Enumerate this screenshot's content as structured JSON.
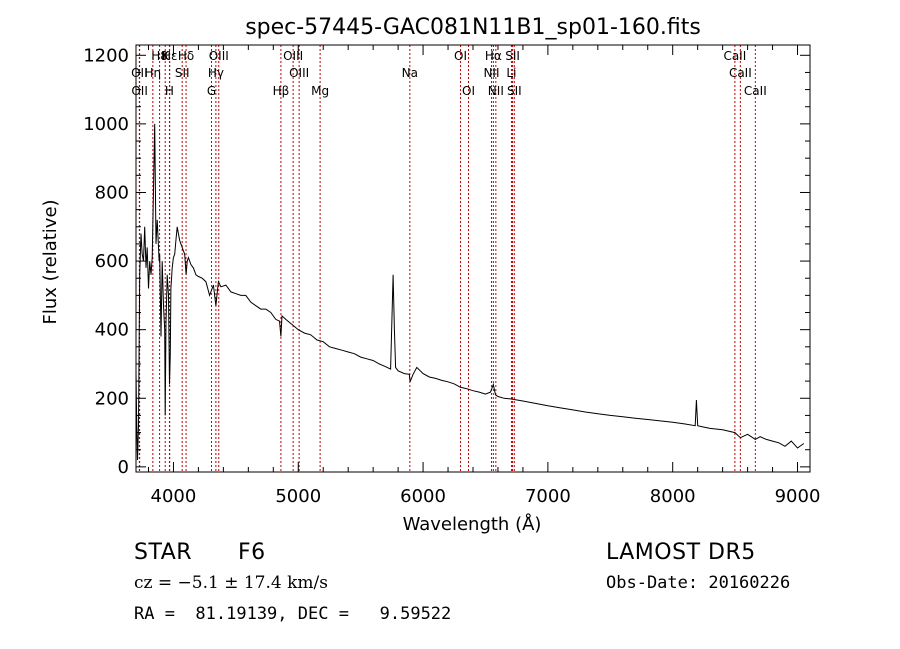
{
  "chart_data": {
    "type": "line",
    "title": "spec-57445-GAC081N11B1_sp01-160.fits",
    "xlabel": "Wavelength (Å)",
    "ylabel": "Flux (relative)",
    "xlim": [
      3700,
      9100
    ],
    "ylim": [
      -15,
      1230
    ],
    "xticks": [
      4000,
      5000,
      6000,
      7000,
      8000,
      9000
    ],
    "yticks": [
      0,
      200,
      400,
      600,
      800,
      1000,
      1200
    ],
    "grid": false,
    "series": [
      {
        "x": [
          3700,
          3705,
          3712,
          3720,
          3730,
          3740,
          3750,
          3760,
          3770,
          3780,
          3790,
          3800,
          3810,
          3820,
          3830,
          3835,
          3845,
          3850,
          3860,
          3870,
          3880,
          3885,
          3890,
          3900,
          3910,
          3920,
          3930,
          3934,
          3940,
          3950,
          3960,
          3968,
          3975,
          3980,
          3990,
          4000,
          4010,
          4020,
          4030,
          4040,
          4050,
          4060,
          4070,
          4080,
          4090,
          4101,
          4110,
          4120,
          4140,
          4160,
          4180,
          4200,
          4230,
          4260,
          4290,
          4320,
          4340,
          4360,
          4380,
          4420,
          4460,
          4500,
          4540,
          4580,
          4620,
          4660,
          4700,
          4740,
          4780,
          4820,
          4850,
          4861,
          4870,
          4900,
          4950,
          5000,
          5050,
          5100,
          5150,
          5200,
          5250,
          5300,
          5350,
          5400,
          5450,
          5500,
          5550,
          5600,
          5650,
          5700,
          5740,
          5760,
          5770,
          5780,
          5800,
          5850,
          5890,
          5896,
          5920,
          5950,
          6000,
          6050,
          6100,
          6150,
          6200,
          6250,
          6300,
          6350,
          6400,
          6450,
          6500,
          6540,
          6563,
          6580,
          6600,
          6650,
          6700,
          6800,
          6900,
          7000,
          7100,
          7200,
          7300,
          7400,
          7500,
          7600,
          7700,
          7800,
          7900,
          8000,
          8100,
          8180,
          8190,
          8200,
          8250,
          8300,
          8400,
          8498,
          8542,
          8600,
          8662,
          8700,
          8750,
          8800,
          8850,
          8900,
          8950,
          9000,
          9050
        ],
        "y": [
          280,
          150,
          20,
          120,
          560,
          680,
          620,
          600,
          700,
          580,
          640,
          520,
          600,
          560,
          610,
          700,
          900,
          1000,
          650,
          720,
          640,
          600,
          620,
          380,
          600,
          470,
          400,
          150,
          420,
          560,
          500,
          240,
          330,
          520,
          580,
          610,
          620,
          660,
          700,
          680,
          660,
          650,
          640,
          630,
          620,
          560,
          600,
          610,
          590,
          580,
          560,
          555,
          550,
          540,
          500,
          530,
          470,
          540,
          525,
          530,
          510,
          505,
          500,
          500,
          480,
          470,
          460,
          460,
          450,
          430,
          425,
          380,
          440,
          430,
          415,
          400,
          390,
          385,
          370,
          365,
          350,
          345,
          340,
          335,
          330,
          320,
          315,
          310,
          300,
          292,
          285,
          560,
          400,
          290,
          280,
          272,
          270,
          248,
          270,
          290,
          272,
          262,
          258,
          252,
          248,
          242,
          232,
          228,
          222,
          218,
          212,
          218,
          240,
          210,
          205,
          200,
          198,
          192,
          185,
          178,
          172,
          166,
          160,
          155,
          150,
          146,
          142,
          138,
          134,
          130,
          125,
          120,
          195,
          120,
          116,
          112,
          108,
          100,
          85,
          95,
          80,
          88,
          80,
          75,
          70,
          60,
          75,
          55,
          68
        ]
      }
    ],
    "lines": [
      {
        "label": "Hβ",
        "wave": 4861,
        "row": 3
      },
      {
        "label": "Hδ",
        "wave": 4101,
        "row": 1
      },
      {
        "label": "Hγ",
        "wave": 4340,
        "row": 2
      },
      {
        "label": "Hε",
        "wave": 3970,
        "row": 1
      },
      {
        "label": "Hη",
        "wave": 3835,
        "row": 2
      },
      {
        "label": "Hα",
        "wave": 6563,
        "row": 1
      },
      {
        "label": "H8",
        "wave": 3889,
        "row": 1
      },
      {
        "label": "K",
        "wave": 3934,
        "row": 1
      },
      {
        "label": "H",
        "wave": 3968,
        "row": 3
      },
      {
        "label": "G",
        "wave": 4305,
        "row": 3
      },
      {
        "label": "Mg",
        "wave": 5175,
        "row": 3
      },
      {
        "label": "Na",
        "wave": 5894,
        "row": 2
      },
      {
        "label": "OII",
        "wave": 3727,
        "row": 2
      },
      {
        "label": "OII",
        "wave": 3729,
        "row": 3
      },
      {
        "label": "OIII",
        "wave": 4363,
        "row": 1
      },
      {
        "label": "OIII",
        "wave": 4959,
        "row": 1
      },
      {
        "label": "OIII",
        "wave": 5007,
        "row": 2
      },
      {
        "label": "OI",
        "wave": 6300,
        "row": 1
      },
      {
        "label": "OI",
        "wave": 6364,
        "row": 3
      },
      {
        "label": "SII",
        "wave": 4070,
        "row": 2
      },
      {
        "label": "SII",
        "wave": 6717,
        "row": 1
      },
      {
        "label": "SII",
        "wave": 6731,
        "row": 3
      },
      {
        "label": "NII",
        "wave": 6548,
        "row": 2
      },
      {
        "label": "NII",
        "wave": 6583,
        "row": 3
      },
      {
        "label": "Li",
        "wave": 6708,
        "row": 2
      },
      {
        "label": "CaII",
        "wave": 8498,
        "row": 1
      },
      {
        "label": "CaII",
        "wave": 8542,
        "row": 2
      },
      {
        "label": "CaII",
        "wave": 8662,
        "row": 3
      }
    ]
  },
  "info": {
    "class_label": "STAR",
    "subclass": "F6",
    "survey": "LAMOST DR5",
    "redshift": "cz = −5.1 ± 17.4 km/s",
    "obs_date": "Obs-Date: 20160226",
    "coords": "RA =  81.19139, DEC =   9.59522"
  },
  "colors": {
    "line": "#000000",
    "marker": "#c00000",
    "axes": "#000000",
    "background": "#ffffff"
  }
}
